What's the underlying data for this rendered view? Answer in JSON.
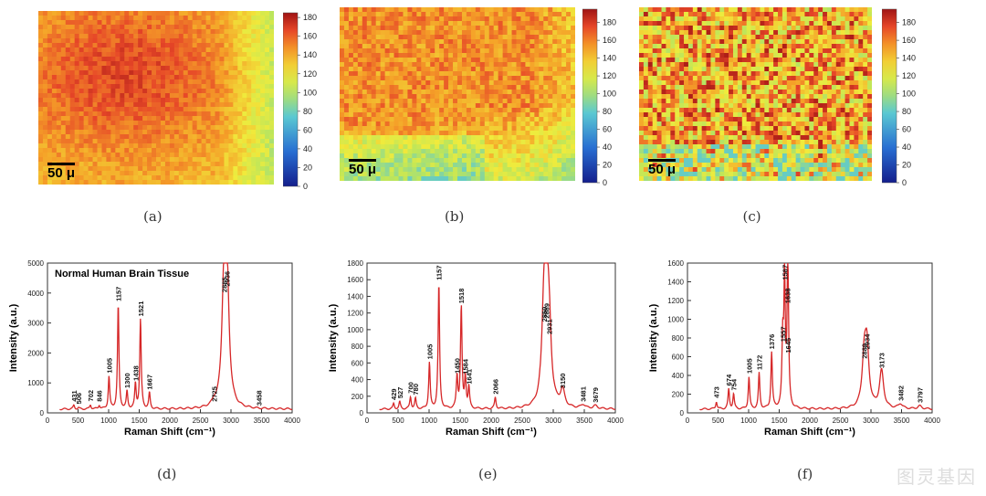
{
  "colors": {
    "line": "#d62728",
    "heat_low": "#1f3fa0",
    "heat_mid": "#e8f03a",
    "heat_high": "#c81e1e"
  },
  "maps": [
    {
      "id": "a",
      "label": "(a)",
      "scalebar": "50 μ",
      "colorbar_ticks": [
        "0",
        "20",
        "40",
        "60",
        "80",
        "100",
        "120",
        "140",
        "160",
        "180"
      ],
      "range": [
        0,
        185
      ]
    },
    {
      "id": "b",
      "label": "(b)",
      "scalebar": "50 μ",
      "colorbar_ticks": [
        "0",
        "20",
        "40",
        "60",
        "80",
        "100",
        "120",
        "140",
        "160",
        "180"
      ],
      "range": [
        0,
        195
      ]
    },
    {
      "id": "c",
      "label": "(c)",
      "scalebar": "50 μ",
      "colorbar_ticks": [
        "0",
        "20",
        "40",
        "60",
        "80",
        "100",
        "120",
        "140",
        "160",
        "180"
      ],
      "range": [
        0,
        195
      ]
    }
  ],
  "chart_data": [
    {
      "type": "line",
      "label": "(d)",
      "title": "Normal Human Brain Tissue",
      "xlabel": "Raman Shift (cm⁻¹)",
      "ylabel": "Intensity (a.u.)",
      "xlim": [
        0,
        4000
      ],
      "ylim": [
        0,
        5000
      ],
      "xticks": [
        0,
        500,
        1000,
        1500,
        2000,
        2500,
        3000,
        3500,
        4000
      ],
      "yticks": [
        0,
        1000,
        2000,
        3000,
        4000,
        5000
      ],
      "peaks": [
        {
          "x": 431,
          "y": 250,
          "label": "431"
        },
        {
          "x": 506,
          "y": 170,
          "label": "506"
        },
        {
          "x": 702,
          "y": 260,
          "label": "702"
        },
        {
          "x": 846,
          "y": 250,
          "label": "846"
        },
        {
          "x": 1005,
          "y": 1200,
          "label": "1005"
        },
        {
          "x": 1157,
          "y": 3600,
          "label": "1157"
        },
        {
          "x": 1300,
          "y": 700,
          "label": "1300"
        },
        {
          "x": 1438,
          "y": 950,
          "label": "1438"
        },
        {
          "x": 1521,
          "y": 3100,
          "label": "1521"
        },
        {
          "x": 1667,
          "y": 650,
          "label": "1667"
        },
        {
          "x": 2725,
          "y": 250,
          "label": "2725"
        },
        {
          "x": 2885,
          "y": 3900,
          "label": "2885"
        },
        {
          "x": 2936,
          "y": 4100,
          "label": "2936"
        },
        {
          "x": 3458,
          "y": 120,
          "label": "3458"
        }
      ]
    },
    {
      "type": "line",
      "label": "(e)",
      "title": "",
      "xlabel": "Raman Shift (cm⁻¹)",
      "ylabel": "Intensity (a.u.)",
      "xlim": [
        0,
        4000
      ],
      "ylim": [
        0,
        1800
      ],
      "xticks": [
        0,
        500,
        1000,
        1500,
        2000,
        2500,
        3000,
        3500,
        4000
      ],
      "yticks": [
        0,
        200,
        400,
        600,
        800,
        1000,
        1200,
        1400,
        1600,
        1800
      ],
      "peaks": [
        {
          "x": 429,
          "y": 110,
          "label": "429"
        },
        {
          "x": 527,
          "y": 130,
          "label": "527"
        },
        {
          "x": 700,
          "y": 190,
          "label": "700"
        },
        {
          "x": 780,
          "y": 170,
          "label": "780"
        },
        {
          "x": 1005,
          "y": 600,
          "label": "1005"
        },
        {
          "x": 1157,
          "y": 1550,
          "label": "1157"
        },
        {
          "x": 1450,
          "y": 430,
          "label": "1450"
        },
        {
          "x": 1518,
          "y": 1270,
          "label": "1518"
        },
        {
          "x": 1584,
          "y": 420,
          "label": "1584"
        },
        {
          "x": 1641,
          "y": 300,
          "label": "1641"
        },
        {
          "x": 2066,
          "y": 180,
          "label": "2066"
        },
        {
          "x": 2850,
          "y": 1050,
          "label": "2850"
        },
        {
          "x": 2889,
          "y": 1090,
          "label": "2889"
        },
        {
          "x": 2931,
          "y": 900,
          "label": "2931"
        },
        {
          "x": 3150,
          "y": 250,
          "label": "3150"
        },
        {
          "x": 3481,
          "y": 90,
          "label": "3481"
        },
        {
          "x": 3679,
          "y": 80,
          "label": "3679"
        }
      ]
    },
    {
      "type": "line",
      "label": "(f)",
      "title": "",
      "xlabel": "Raman Shift (cm⁻¹)",
      "ylabel": "Intensity (a.u.)",
      "xlim": [
        0,
        4000
      ],
      "ylim": [
        0,
        1600
      ],
      "xticks": [
        0,
        500,
        1000,
        1500,
        2000,
        2500,
        3000,
        3500,
        4000
      ],
      "yticks": [
        0,
        200,
        400,
        600,
        800,
        1000,
        1200,
        1400,
        1600
      ],
      "peaks": [
        {
          "x": 473,
          "y": 120,
          "label": "473"
        },
        {
          "x": 674,
          "y": 250,
          "label": "674"
        },
        {
          "x": 754,
          "y": 200,
          "label": "754"
        },
        {
          "x": 1005,
          "y": 380,
          "label": "1005"
        },
        {
          "x": 1172,
          "y": 420,
          "label": "1172"
        },
        {
          "x": 1376,
          "y": 640,
          "label": "1376"
        },
        {
          "x": 1557,
          "y": 720,
          "label": "1557"
        },
        {
          "x": 1587,
          "y": 1380,
          "label": "1587"
        },
        {
          "x": 1638,
          "y": 1130,
          "label": "1638"
        },
        {
          "x": 1645,
          "y": 600,
          "label": "1645"
        },
        {
          "x": 2889,
          "y": 540,
          "label": "2889"
        },
        {
          "x": 2934,
          "y": 640,
          "label": "2934"
        },
        {
          "x": 3173,
          "y": 440,
          "label": "3173"
        },
        {
          "x": 3482,
          "y": 90,
          "label": "3482"
        },
        {
          "x": 3797,
          "y": 70,
          "label": "3797"
        }
      ]
    }
  ],
  "watermark": "图灵基因"
}
